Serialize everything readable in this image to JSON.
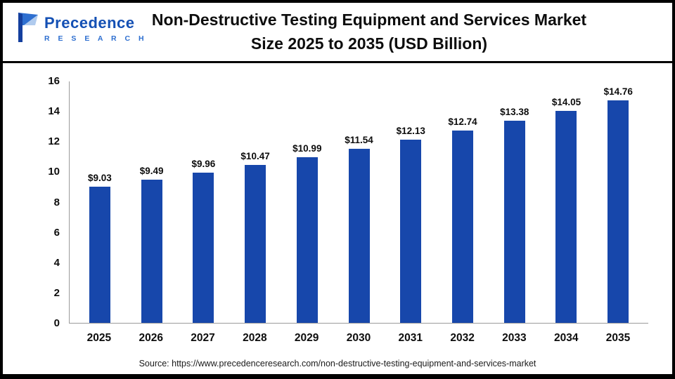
{
  "header": {
    "logo_name": "Precedence",
    "logo_subtitle": "R E S E A R C H",
    "title_line1": "Non-Destructive Testing Equipment and Services Market",
    "title_line2": "Size 2025 to 2035 (USD Billion)"
  },
  "chart_data": {
    "type": "bar",
    "title": "Non-Destructive Testing Equipment and Services Market Size 2025 to 2035 (USD Billion)",
    "categories": [
      "2025",
      "2026",
      "2027",
      "2028",
      "2029",
      "2030",
      "2031",
      "2032",
      "2033",
      "2034",
      "2035"
    ],
    "values": [
      9.03,
      9.49,
      9.96,
      10.47,
      10.99,
      11.54,
      12.13,
      12.74,
      13.38,
      14.05,
      14.76
    ],
    "value_labels": [
      "$9.03",
      "$9.49",
      "$9.96",
      "$10.47",
      "$10.99",
      "$11.54",
      "$12.13",
      "$12.74",
      "$13.38",
      "$14.05",
      "$14.76"
    ],
    "xlabel": "",
    "ylabel": "",
    "ylim": [
      0,
      16
    ],
    "yticks": [
      0,
      2,
      4,
      6,
      8,
      10,
      12,
      14,
      16
    ],
    "bar_color": "#1747AB",
    "grid": false,
    "legend": false,
    "unit": "USD Billion"
  },
  "footer": {
    "source": "Source: https://www.precedenceresearch.com/non-destructive-testing-equipment-and-services-market"
  }
}
